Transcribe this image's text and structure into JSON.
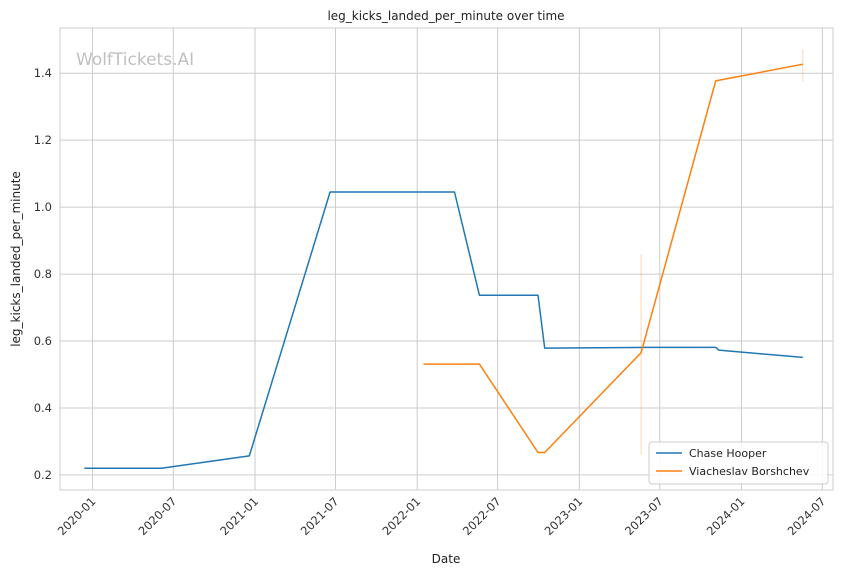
{
  "chart_data": {
    "type": "line",
    "title": "leg_kicks_landed_per_minute over time",
    "xlabel": "Date",
    "ylabel": "leg_kicks_landed_per_minute",
    "watermark": "WolfTickets.AI",
    "x_is_date": true,
    "xlim": [
      "2019-10-20",
      "2024-07-25"
    ],
    "ylim": [
      0.155,
      1.535
    ],
    "xticks": [
      "2020-01",
      "2020-07",
      "2021-01",
      "2021-07",
      "2022-01",
      "2022-07",
      "2023-01",
      "2023-07",
      "2024-01",
      "2024-07"
    ],
    "yticks": [
      "0.2",
      "0.4",
      "0.6",
      "0.8",
      "1.0",
      "1.2",
      "1.4"
    ],
    "grid": true,
    "legend_position": "bottom-right",
    "series": [
      {
        "name": "Chase Hooper",
        "color": "#1f77b4",
        "x": [
          "2019-12-14",
          "2020-06-04",
          "2020-12-19",
          "2021-06-19",
          "2022-03-26",
          "2022-05-21",
          "2022-09-30",
          "2022-10-15",
          "2023-05-25",
          "2023-11-04",
          "2023-11-11",
          "2024-05-18"
        ],
        "y": [
          0.22,
          0.22,
          0.257,
          1.045,
          1.045,
          0.737,
          0.737,
          0.579,
          0.581,
          0.581,
          0.573,
          0.551
        ]
      },
      {
        "name": "Viacheslav Borshchev",
        "color": "#ff7f0e",
        "x": [
          "2022-01-15",
          "2022-05-21",
          "2022-09-30",
          "2022-10-15",
          "2023-05-20",
          "2023-11-04",
          "2024-05-18"
        ],
        "y": [
          0.531,
          0.531,
          0.267,
          0.267,
          0.565,
          1.377,
          1.427
        ]
      }
    ]
  }
}
